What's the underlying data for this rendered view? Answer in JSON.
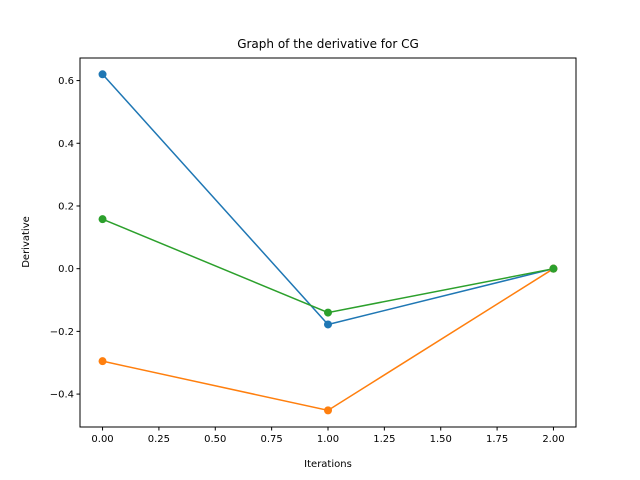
{
  "chart_data": {
    "type": "line",
    "title": "Graph of the derivative for CG",
    "xlabel": "Iterations",
    "ylabel": "Derivative",
    "x": [
      0,
      1,
      2
    ],
    "xlim": [
      -0.1,
      2.1
    ],
    "ylim": [
      -0.505,
      0.672
    ],
    "xticks": [
      0.0,
      0.25,
      0.5,
      0.75,
      1.0,
      1.25,
      1.5,
      1.75,
      2.0
    ],
    "xtick_labels": [
      "0.00",
      "0.25",
      "0.50",
      "0.75",
      "1.00",
      "1.25",
      "1.50",
      "1.75",
      "2.00"
    ],
    "yticks": [
      -0.4,
      -0.2,
      0.0,
      0.2,
      0.4,
      0.6
    ],
    "ytick_labels": [
      "−0.4",
      "−0.2",
      "0.0",
      "0.2",
      "0.4",
      "0.6"
    ],
    "grid": false,
    "series": [
      {
        "values": [
          0.62,
          -0.178,
          0.0
        ],
        "color": "#1f77b4"
      },
      {
        "values": [
          -0.295,
          -0.452,
          0.0
        ],
        "color": "#ff7f0e"
      },
      {
        "values": [
          0.158,
          -0.14,
          0.0
        ],
        "color": "#2ca02c"
      }
    ]
  }
}
